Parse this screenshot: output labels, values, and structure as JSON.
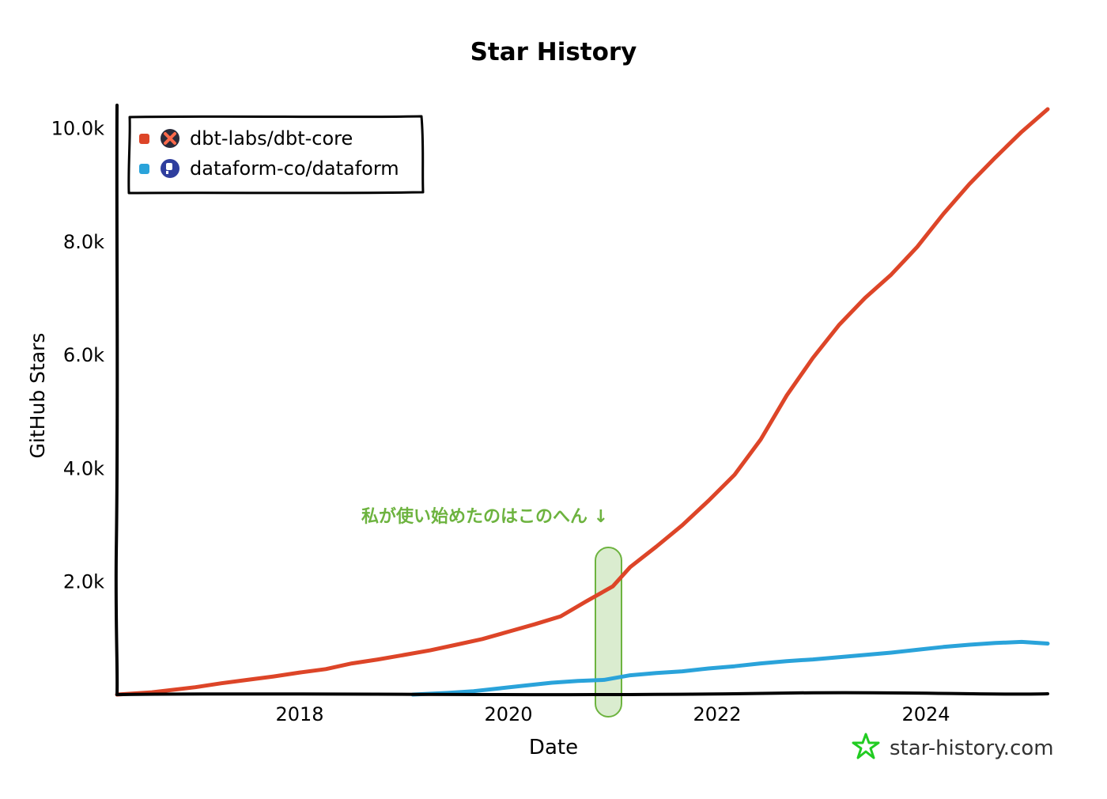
{
  "chart_data": {
    "type": "line",
    "title": "Star History",
    "xlabel": "Date",
    "ylabel": "GitHub Stars",
    "x_ticks": [
      "2018",
      "2020",
      "2022",
      "2024"
    ],
    "y_ticks": [
      "2.0k",
      "4.0k",
      "6.0k",
      "8.0k",
      "10.0k"
    ],
    "y_tick_values": [
      2000,
      4000,
      6000,
      8000,
      10000
    ],
    "xlim": [
      "2016-04",
      "2025-03"
    ],
    "ylim": [
      0,
      10400
    ],
    "legend_position": "top-left",
    "grid": false,
    "series": [
      {
        "name": "dbt-labs/dbt-core",
        "color": "#dd4528",
        "points": [
          [
            "2016-04",
            0
          ],
          [
            "2016-08",
            40
          ],
          [
            "2017-01",
            130
          ],
          [
            "2017-04",
            200
          ],
          [
            "2017-07",
            260
          ],
          [
            "2017-10",
            320
          ],
          [
            "2018-01",
            390
          ],
          [
            "2018-04",
            450
          ],
          [
            "2018-07",
            550
          ],
          [
            "2018-10",
            620
          ],
          [
            "2019-01",
            700
          ],
          [
            "2019-04",
            780
          ],
          [
            "2019-07",
            880
          ],
          [
            "2019-10",
            980
          ],
          [
            "2020-01",
            1110
          ],
          [
            "2020-04",
            1240
          ],
          [
            "2020-07",
            1380
          ],
          [
            "2020-10",
            1650
          ],
          [
            "2021-01",
            1910
          ],
          [
            "2021-03",
            2250
          ],
          [
            "2021-06",
            2610
          ],
          [
            "2021-09",
            2990
          ],
          [
            "2021-12",
            3420
          ],
          [
            "2022-03",
            3880
          ],
          [
            "2022-06",
            4500
          ],
          [
            "2022-09",
            5280
          ],
          [
            "2022-12",
            5940
          ],
          [
            "2023-03",
            6520
          ],
          [
            "2023-06",
            7000
          ],
          [
            "2023-09",
            7410
          ],
          [
            "2023-12",
            7900
          ],
          [
            "2024-03",
            8480
          ],
          [
            "2024-06",
            9010
          ],
          [
            "2024-09",
            9480
          ],
          [
            "2024-12",
            9930
          ],
          [
            "2025-03",
            10330
          ]
        ]
      },
      {
        "name": "dataform-co/dataform",
        "color": "#2aa3da",
        "points": [
          [
            "2019-02",
            0
          ],
          [
            "2019-06",
            30
          ],
          [
            "2019-09",
            60
          ],
          [
            "2019-12",
            110
          ],
          [
            "2020-03",
            160
          ],
          [
            "2020-06",
            210
          ],
          [
            "2020-09",
            240
          ],
          [
            "2020-12",
            260
          ],
          [
            "2021-03",
            340
          ],
          [
            "2021-06",
            380
          ],
          [
            "2021-09",
            410
          ],
          [
            "2021-12",
            460
          ],
          [
            "2022-03",
            500
          ],
          [
            "2022-06",
            550
          ],
          [
            "2022-09",
            590
          ],
          [
            "2022-12",
            620
          ],
          [
            "2023-03",
            660
          ],
          [
            "2023-06",
            700
          ],
          [
            "2023-09",
            740
          ],
          [
            "2023-12",
            790
          ],
          [
            "2024-03",
            840
          ],
          [
            "2024-06",
            880
          ],
          [
            "2024-09",
            910
          ],
          [
            "2024-12",
            930
          ],
          [
            "2025-03",
            900
          ]
        ]
      }
    ],
    "annotation": {
      "text": "私が使い始めたのはこのへん ↓",
      "color": "#6db33f",
      "x_range": [
        "2020-11",
        "2021-02"
      ]
    }
  },
  "watermark": {
    "text": "star-history.com",
    "icon": "star-icon",
    "icon_color": "#22cc22"
  },
  "legend_icons": {
    "dbt-labs/dbt-core": "dbt-logo-icon",
    "dataform-co/dataform": "dataform-logo-icon"
  }
}
